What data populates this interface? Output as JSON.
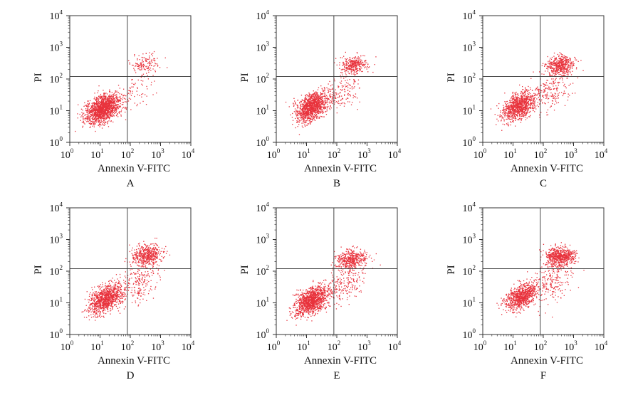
{
  "figure": {
    "background": "#ffffff",
    "point_color": "#e8323c",
    "line_color": "#333333"
  },
  "chart_data": [
    {
      "type": "scatter",
      "panel_label": "A",
      "xlabel": "Annexin V-FITC",
      "ylabel": "PI",
      "xscale": "log",
      "yscale": "log",
      "xlim": [
        1,
        10000
      ],
      "ylim": [
        1,
        10000
      ],
      "tick_labels": [
        "10",
        "10",
        "10",
        "10",
        "10"
      ],
      "tick_exponents": [
        "0",
        "1",
        "2",
        "3",
        "4"
      ],
      "quadrant_gate": {
        "x": 80,
        "y": 120
      },
      "grid": false,
      "populations": [
        {
          "center": [
            12,
            12
          ],
          "spread": [
            0.28,
            0.23
          ],
          "tilt": 0.45,
          "n": 1500
        },
        {
          "center": [
            300,
            300
          ],
          "spread": [
            0.25,
            0.17
          ],
          "tilt": 0.1,
          "n": 140
        },
        {
          "center": [
            130,
            35
          ],
          "spread": [
            0.35,
            0.33
          ],
          "tilt": 0.4,
          "n": 80
        }
      ]
    },
    {
      "type": "scatter",
      "panel_label": "B",
      "xlabel": "Annexin V-FITC",
      "ylabel": "PI",
      "xscale": "log",
      "yscale": "log",
      "xlim": [
        1,
        10000
      ],
      "ylim": [
        1,
        10000
      ],
      "tick_labels": [
        "10",
        "10",
        "10",
        "10",
        "10"
      ],
      "tick_exponents": [
        "0",
        "1",
        "2",
        "3",
        "4"
      ],
      "quadrant_gate": {
        "x": 80,
        "y": 120
      },
      "grid": false,
      "populations": [
        {
          "center": [
            15,
            14
          ],
          "spread": [
            0.27,
            0.23
          ],
          "tilt": 0.45,
          "n": 1200
        },
        {
          "center": [
            350,
            280
          ],
          "spread": [
            0.22,
            0.14
          ],
          "tilt": 0.1,
          "n": 330
        },
        {
          "center": [
            150,
            40
          ],
          "spread": [
            0.35,
            0.33
          ],
          "tilt": 0.4,
          "n": 150
        }
      ]
    },
    {
      "type": "scatter",
      "panel_label": "C",
      "xlabel": "Annexin V-FITC",
      "ylabel": "PI",
      "xscale": "log",
      "yscale": "log",
      "xlim": [
        1,
        10000
      ],
      "ylim": [
        1,
        10000
      ],
      "tick_labels": [
        "10",
        "10",
        "10",
        "10",
        "10"
      ],
      "tick_exponents": [
        "0",
        "1",
        "2",
        "3",
        "4"
      ],
      "quadrant_gate": {
        "x": 80,
        "y": 120
      },
      "grid": false,
      "populations": [
        {
          "center": [
            15,
            14
          ],
          "spread": [
            0.27,
            0.23
          ],
          "tilt": 0.45,
          "n": 1000
        },
        {
          "center": [
            350,
            280
          ],
          "spread": [
            0.23,
            0.15
          ],
          "tilt": 0.1,
          "n": 480
        },
        {
          "center": [
            180,
            45
          ],
          "spread": [
            0.35,
            0.33
          ],
          "tilt": 0.4,
          "n": 200
        }
      ]
    },
    {
      "type": "scatter",
      "panel_label": "D",
      "xlabel": "Annexin V-FITC",
      "ylabel": "PI",
      "xscale": "log",
      "yscale": "log",
      "xlim": [
        1,
        10000
      ],
      "ylim": [
        1,
        10000
      ],
      "tick_labels": [
        "10",
        "10",
        "10",
        "10",
        "10"
      ],
      "tick_exponents": [
        "0",
        "1",
        "2",
        "3",
        "4"
      ],
      "quadrant_gate": {
        "x": 80,
        "y": 120
      },
      "grid": false,
      "populations": [
        {
          "center": [
            15,
            14
          ],
          "spread": [
            0.27,
            0.23
          ],
          "tilt": 0.45,
          "n": 1000
        },
        {
          "center": [
            350,
            330
          ],
          "spread": [
            0.24,
            0.16
          ],
          "tilt": 0.1,
          "n": 500
        },
        {
          "center": [
            180,
            45
          ],
          "spread": [
            0.35,
            0.33
          ],
          "tilt": 0.4,
          "n": 220
        }
      ]
    },
    {
      "type": "scatter",
      "panel_label": "E",
      "xlabel": "Annexin V-FITC",
      "ylabel": "PI",
      "xscale": "log",
      "yscale": "log",
      "xlim": [
        1,
        10000
      ],
      "ylim": [
        1,
        10000
      ],
      "tick_labels": [
        "10",
        "10",
        "10",
        "10",
        "10"
      ],
      "tick_exponents": [
        "0",
        "1",
        "2",
        "3",
        "4"
      ],
      "quadrant_gate": {
        "x": 80,
        "y": 120
      },
      "grid": false,
      "populations": [
        {
          "center": [
            14,
            12
          ],
          "spread": [
            0.27,
            0.23
          ],
          "tilt": 0.45,
          "n": 1200
        },
        {
          "center": [
            300,
            240
          ],
          "spread": [
            0.24,
            0.17
          ],
          "tilt": 0.1,
          "n": 450
        },
        {
          "center": [
            160,
            40
          ],
          "spread": [
            0.35,
            0.35
          ],
          "tilt": 0.4,
          "n": 220
        }
      ]
    },
    {
      "type": "scatter",
      "panel_label": "F",
      "xlabel": "Annexin V-FITC",
      "ylabel": "PI",
      "xscale": "log",
      "yscale": "log",
      "xlim": [
        1,
        10000
      ],
      "ylim": [
        1,
        10000
      ],
      "tick_labels": [
        "10",
        "10",
        "10",
        "10",
        "10"
      ],
      "tick_exponents": [
        "0",
        "1",
        "2",
        "3",
        "4"
      ],
      "quadrant_gate": {
        "x": 80,
        "y": 120
      },
      "grid": false,
      "populations": [
        {
          "center": [
            18,
            16
          ],
          "spread": [
            0.25,
            0.21
          ],
          "tilt": 0.45,
          "n": 850
        },
        {
          "center": [
            350,
            300
          ],
          "spread": [
            0.24,
            0.15
          ],
          "tilt": 0.1,
          "n": 650
        },
        {
          "center": [
            180,
            45
          ],
          "spread": [
            0.33,
            0.33
          ],
          "tilt": 0.4,
          "n": 220
        }
      ]
    }
  ]
}
